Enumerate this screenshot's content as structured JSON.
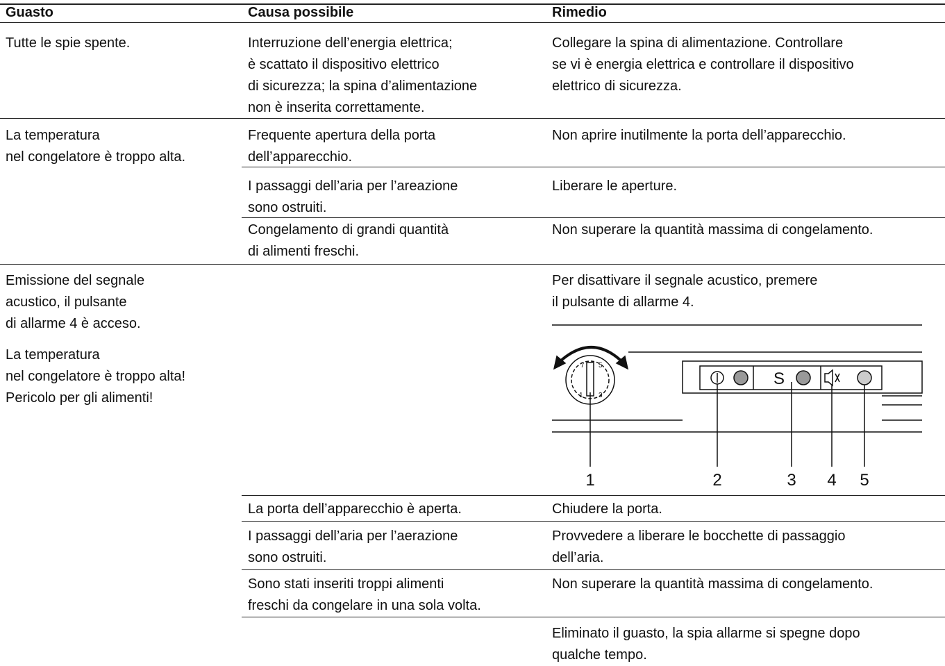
{
  "table": {
    "header": [
      "Guasto",
      "Causa possibile",
      "Rimedio"
    ],
    "rows": [
      {
        "fault": "Tutte le spie spente.",
        "cause": "Interruzione dell’energia elettrica;\nè scattato il dispositivo elettrico\ndi sicurezza; la spina d’alimentazione\nnon è inserita correttamente.",
        "remedy": "Collegare la spina di alimentazione. Controllare\nse vi è energia elettrica e controllare il dispositivo\nelettrico di sicurezza."
      },
      {
        "fault": "La temperatura\nnel congelatore è troppo alta.",
        "cause": "Frequente apertura della porta\ndell’apparecchio.",
        "remedy": "Non aprire inutilmente la porta dell’apparecchio."
      },
      {
        "cause": "I passaggi dell’aria per l’areazione\nsono ostruiti.",
        "remedy": "Liberare le aperture."
      },
      {
        "cause": "Congelamento di grandi quantità\ndi alimenti freschi.",
        "remedy": "Non superare la quantità massima di congelamento."
      },
      {
        "fault": "Emissione del segnale\nacustico, il pulsante\ndi allarme 4 è acceso.",
        "fault_note": "La temperatura\nnel congelatore è troppo alta!\nPericolo per gli alimenti!",
        "remedy": "Per disattivare il segnale acustico, premere\nil pulsante di allarme 4."
      },
      {
        "cause": "La porta dell’apparecchio è aperta.",
        "remedy": "Chiudere la porta."
      },
      {
        "cause": "I passaggi dell’aria per l’aerazione\nsono ostruiti.",
        "remedy": "Provvedere a liberare le bocchette di passaggio\ndell’aria."
      },
      {
        "cause": "Sono stati inseriti troppi alimenti\nfreschi da congelare in una sola volta.",
        "remedy": "Non superare la quantità massima di congelamento."
      },
      {
        "remedy": "Eliminato il guasto, la spia allarme si spegne dopo\nqualche tempo."
      }
    ]
  },
  "diagram": {
    "dial": [
      "7",
      "5",
      "3",
      "1"
    ],
    "button_label": "S",
    "callouts": [
      "1",
      "2",
      "3",
      "4",
      "5"
    ]
  }
}
